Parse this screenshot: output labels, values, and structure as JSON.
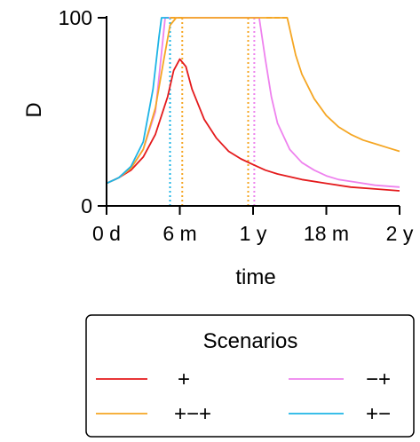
{
  "chart_data": {
    "type": "line",
    "xlabel": "time",
    "ylabel": "D",
    "xlim": [
      0,
      24
    ],
    "ylim": [
      0,
      100
    ],
    "x_unit": "months",
    "x_ticks": [
      {
        "value": 0,
        "label": "0 d"
      },
      {
        "value": 6,
        "label": "6 m"
      },
      {
        "value": 12,
        "label": "1 y"
      },
      {
        "value": 18,
        "label": "18 m"
      },
      {
        "value": 24,
        "label": "2 y"
      }
    ],
    "y_ticks": [
      {
        "value": 0,
        "label": "0"
      },
      {
        "value": 100,
        "label": "100"
      }
    ],
    "grid": false,
    "legend": {
      "title": "Scenarios",
      "placement": "bottom",
      "entries": [
        "+",
        "−+",
        "+−+",
        "+−"
      ]
    },
    "series": [
      {
        "name": "+",
        "color": "#e41a1c",
        "x": [
          0,
          1,
          2,
          3,
          4,
          5,
          5.5,
          6,
          6.5,
          7,
          8,
          9,
          10,
          11,
          12,
          13,
          14,
          16,
          18,
          20,
          22,
          24
        ],
        "y": [
          12,
          15,
          19,
          26,
          38,
          58,
          72,
          78,
          74,
          62,
          46,
          36,
          29,
          25,
          22,
          19,
          17,
          14,
          12,
          10,
          9,
          8
        ]
      },
      {
        "name": "−+",
        "color": "#ee82ee",
        "x": [
          0,
          1,
          2,
          3,
          4,
          4.8,
          12,
          12.5,
          13,
          13.5,
          14,
          15,
          16,
          17,
          18,
          19,
          20,
          22,
          24
        ],
        "y": [
          12,
          15,
          20,
          30,
          50,
          100,
          100,
          100,
          78,
          58,
          44,
          30,
          23,
          19,
          16,
          14,
          13,
          11,
          10
        ]
      },
      {
        "name": "+−+",
        "color": "#f5a623",
        "x": [
          0,
          1,
          2,
          3,
          4,
          4.7,
          5.2,
          5.7,
          12.0,
          14.8,
          15.5,
          16,
          17,
          18,
          19,
          20,
          21,
          22,
          23,
          24
        ],
        "y": [
          12,
          15,
          20,
          30,
          52,
          78,
          96,
          100,
          100,
          100,
          80,
          70,
          57,
          48,
          42,
          38,
          35,
          33,
          31,
          29
        ]
      },
      {
        "name": "+−",
        "color": "#1eb4e6",
        "x": [
          0,
          1,
          2,
          3,
          3.8,
          4.3,
          4.5,
          5.1
        ],
        "y": [
          12,
          15,
          21,
          34,
          62,
          90,
          100,
          100
        ]
      }
    ],
    "vertical_markers": [
      {
        "series": "+−",
        "x": 5.2,
        "color": "#1eb4e6",
        "style": "dotted"
      },
      {
        "series": "+−+",
        "x": 6.2,
        "color": "#f5a623",
        "style": "dotted"
      },
      {
        "series": "+−+",
        "x": 11.6,
        "color": "#f5a623",
        "style": "dotted"
      },
      {
        "series": "−+",
        "x": 12.1,
        "color": "#ee82ee",
        "style": "dotted"
      }
    ],
    "dashed_caps": [
      {
        "series": "+−+",
        "x": [
          5.2,
          6.2
        ],
        "y": 100,
        "color": "#f5a623"
      },
      {
        "series": "+−+",
        "x": [
          13.1,
          14.8
        ],
        "y": 100,
        "color": "#f5a623"
      }
    ]
  }
}
